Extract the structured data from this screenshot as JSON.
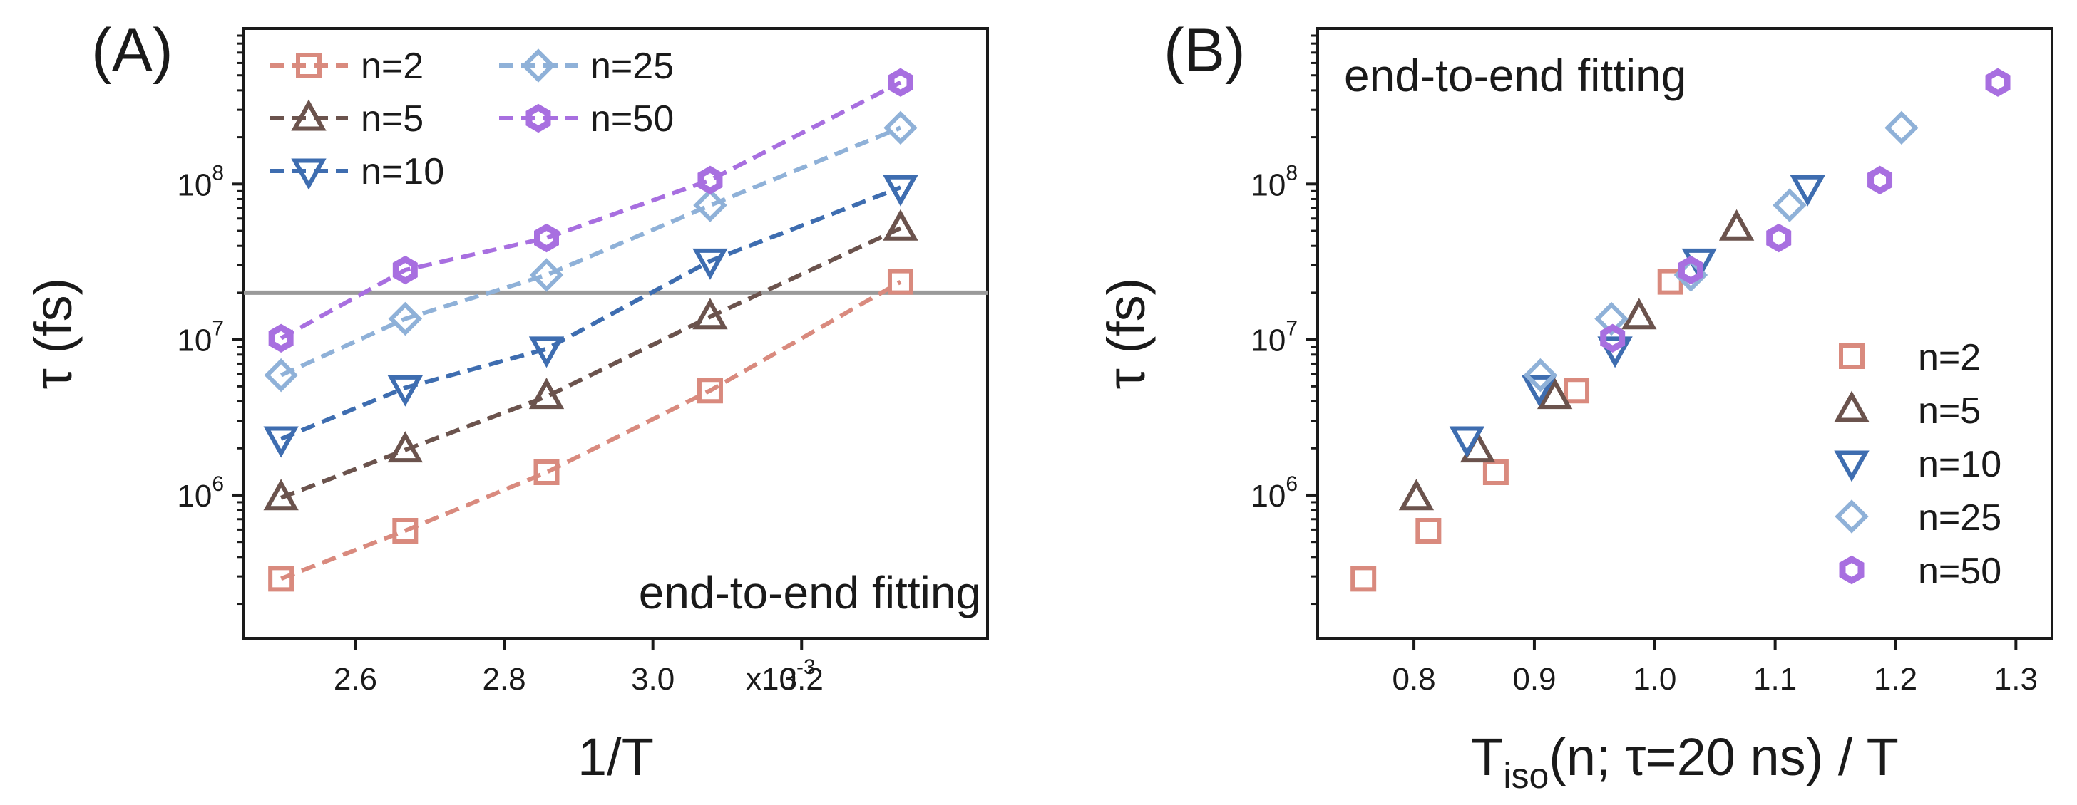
{
  "colors": {
    "n2": "#d98a7e",
    "n5": "#6b534d",
    "n10": "#3e6db0",
    "n25": "#8fb1d8",
    "n50": "#a86fe0",
    "refline": "#9a9a9a"
  },
  "chart_data": [
    {
      "panel": "(A)",
      "type": "line",
      "title": "",
      "annotation": "end-to-end fitting",
      "xlabel": "1/T",
      "ylabel": "τ (fs)",
      "yscale": "log",
      "xlim": [
        0.00245,
        0.00345
      ],
      "ylim": [
        120000,
        1000000000
      ],
      "x_multiplier_label": "x10",
      "x_multiplier_exp": "-3",
      "xticks": [
        {
          "v": 0.0026,
          "label": "2.6"
        },
        {
          "v": 0.0028,
          "label": "2.8"
        },
        {
          "v": 0.003,
          "label": "3.0"
        },
        {
          "v": 0.0032,
          "label": "3.2"
        }
      ],
      "yticks": [
        {
          "v": 1000000,
          "base": "10",
          "exp": "6"
        },
        {
          "v": 10000000,
          "base": "10",
          "exp": "7"
        },
        {
          "v": 100000000,
          "base": "10",
          "exp": "8"
        }
      ],
      "hline": 20000000,
      "legend_position": "top-left",
      "series": [
        {
          "name": "n=2",
          "marker": "square",
          "color_key": "n2",
          "x": [
            0.0025,
            0.002667,
            0.002857,
            0.003077,
            0.003333
          ],
          "y": [
            290000,
            590000,
            1400000,
            4700000,
            23500000
          ]
        },
        {
          "name": "n=5",
          "marker": "triangle-up",
          "color_key": "n5",
          "x": [
            0.0025,
            0.002667,
            0.002857,
            0.003077,
            0.003333
          ],
          "y": [
            960000,
            1950000,
            4300000,
            14000000,
            52000000
          ]
        },
        {
          "name": "n=10",
          "marker": "triangle-down",
          "color_key": "n10",
          "x": [
            0.0025,
            0.002667,
            0.002857,
            0.003077,
            0.003333
          ],
          "y": [
            2300000,
            4900000,
            8700000,
            32000000,
            95000000
          ]
        },
        {
          "name": "n=25",
          "marker": "diamond",
          "color_key": "n25",
          "x": [
            0.0025,
            0.002667,
            0.002857,
            0.003077,
            0.003333
          ],
          "y": [
            5900000,
            13600000,
            26000000,
            73000000,
            230000000
          ]
        },
        {
          "name": "n=50",
          "marker": "hexagon",
          "color_key": "n50",
          "x": [
            0.0025,
            0.002667,
            0.002857,
            0.003077,
            0.003333
          ],
          "y": [
            10200000,
            28000000,
            45000000,
            106000000,
            450000000
          ]
        }
      ]
    },
    {
      "panel": "(B)",
      "type": "scatter",
      "title": "",
      "annotation": "end-to-end fitting",
      "xlabel_main": "T",
      "xlabel_sub": "iso",
      "xlabel_rest": "(n; τ=20 ns) / T",
      "ylabel": "τ (fs)",
      "yscale": "log",
      "xlim": [
        0.72,
        1.33
      ],
      "ylim": [
        120000,
        1000000000
      ],
      "xticks": [
        {
          "v": 0.8,
          "label": "0.8"
        },
        {
          "v": 0.9,
          "label": "0.9"
        },
        {
          "v": 1.0,
          "label": "1.0"
        },
        {
          "v": 1.1,
          "label": "1.1"
        },
        {
          "v": 1.2,
          "label": "1.2"
        },
        {
          "v": 1.3,
          "label": "1.3"
        }
      ],
      "yticks": [
        {
          "v": 1000000,
          "base": "10",
          "exp": "6"
        },
        {
          "v": 10000000,
          "base": "10",
          "exp": "7"
        },
        {
          "v": 100000000,
          "base": "10",
          "exp": "8"
        }
      ],
      "legend_position": "bottom-right",
      "series": [
        {
          "name": "n=2",
          "marker": "square",
          "color_key": "n2",
          "x": [
            0.758,
            0.812,
            0.868,
            0.935,
            1.013
          ],
          "y": [
            290000,
            590000,
            1400000,
            4700000,
            23500000
          ]
        },
        {
          "name": "n=5",
          "marker": "triangle-up",
          "color_key": "n5",
          "x": [
            0.802,
            0.853,
            0.917,
            0.987,
            1.068
          ],
          "y": [
            960000,
            1950000,
            4300000,
            14000000,
            52000000
          ]
        },
        {
          "name": "n=10",
          "marker": "triangle-down",
          "color_key": "n10",
          "x": [
            0.844,
            0.904,
            0.967,
            1.037,
            1.127
          ],
          "y": [
            2300000,
            4900000,
            8700000,
            32000000,
            95000000
          ]
        },
        {
          "name": "n=25",
          "marker": "diamond",
          "color_key": "n25",
          "x": [
            0.905,
            0.964,
            1.03,
            1.112,
            1.205
          ],
          "y": [
            5900000,
            13600000,
            26000000,
            73000000,
            230000000
          ]
        },
        {
          "name": "n=50",
          "marker": "hexagon",
          "color_key": "n50",
          "x": [
            0.965,
            1.03,
            1.103,
            1.187,
            1.285
          ],
          "y": [
            10200000,
            28000000,
            45000000,
            106000000,
            450000000
          ]
        }
      ]
    }
  ]
}
